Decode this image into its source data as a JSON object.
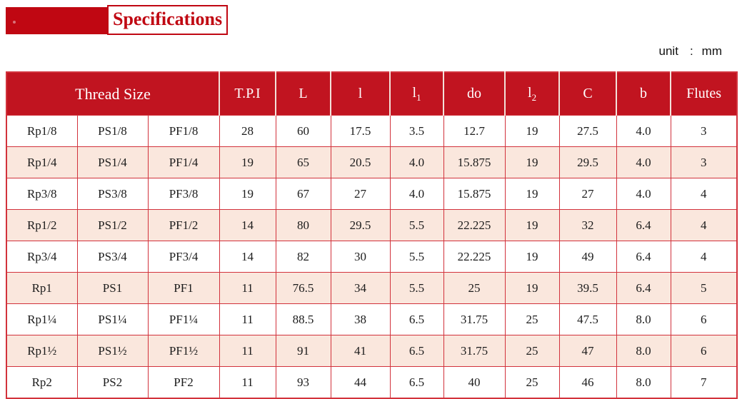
{
  "title": {
    "label": "Specifications"
  },
  "unit_note": {
    "label": "unit",
    "separator": ":",
    "value": "mm"
  },
  "colors": {
    "banner_red": "#C00712",
    "title_text_red": "#C00712",
    "header_red": "#C11420",
    "border_red": "#D2323C",
    "row_alt_pink": "#FAE7DD"
  },
  "table": {
    "headers": [
      {
        "key": "thread-size",
        "label": "Thread Size",
        "colspan": 3
      },
      {
        "key": "tpi",
        "label": "T.P.I"
      },
      {
        "key": "L",
        "label": "L"
      },
      {
        "key": "l",
        "label": "l"
      },
      {
        "key": "l1",
        "label": "l",
        "sub": "1"
      },
      {
        "key": "do",
        "label": "do"
      },
      {
        "key": "l2",
        "label": "l",
        "sub": "2"
      },
      {
        "key": "C",
        "label": "C"
      },
      {
        "key": "b",
        "label": "b"
      },
      {
        "key": "flutes",
        "label": "Flutes"
      }
    ],
    "rows": [
      [
        "Rp1/8",
        "PS1/8",
        "PF1/8",
        "28",
        "60",
        "17.5",
        "3.5",
        "12.7",
        "19",
        "27.5",
        "4.0",
        "3"
      ],
      [
        "Rp1/4",
        "PS1/4",
        "PF1/4",
        "19",
        "65",
        "20.5",
        "4.0",
        "15.875",
        "19",
        "29.5",
        "4.0",
        "3"
      ],
      [
        "Rp3/8",
        "PS3/8",
        "PF3/8",
        "19",
        "67",
        "27",
        "4.0",
        "15.875",
        "19",
        "27",
        "4.0",
        "4"
      ],
      [
        "Rp1/2",
        "PS1/2",
        "PF1/2",
        "14",
        "80",
        "29.5",
        "5.5",
        "22.225",
        "19",
        "32",
        "6.4",
        "4"
      ],
      [
        "Rp3/4",
        "PS3/4",
        "PF3/4",
        "14",
        "82",
        "30",
        "5.5",
        "22.225",
        "19",
        "49",
        "6.4",
        "4"
      ],
      [
        "Rp1",
        "PS1",
        "PF1",
        "11",
        "76.5",
        "34",
        "5.5",
        "25",
        "19",
        "39.5",
        "6.4",
        "5"
      ],
      [
        "Rp1¼",
        "PS1¼",
        "PF1¼",
        "11",
        "88.5",
        "38",
        "6.5",
        "31.75",
        "25",
        "47.5",
        "8.0",
        "6"
      ],
      [
        "Rp1½",
        "PS1½",
        "PF1½",
        "11",
        "91",
        "41",
        "6.5",
        "31.75",
        "25",
        "47",
        "8.0",
        "6"
      ],
      [
        "Rp2",
        "PS2",
        "PF2",
        "11",
        "93",
        "44",
        "6.5",
        "40",
        "25",
        "46",
        "8.0",
        "7"
      ]
    ]
  }
}
